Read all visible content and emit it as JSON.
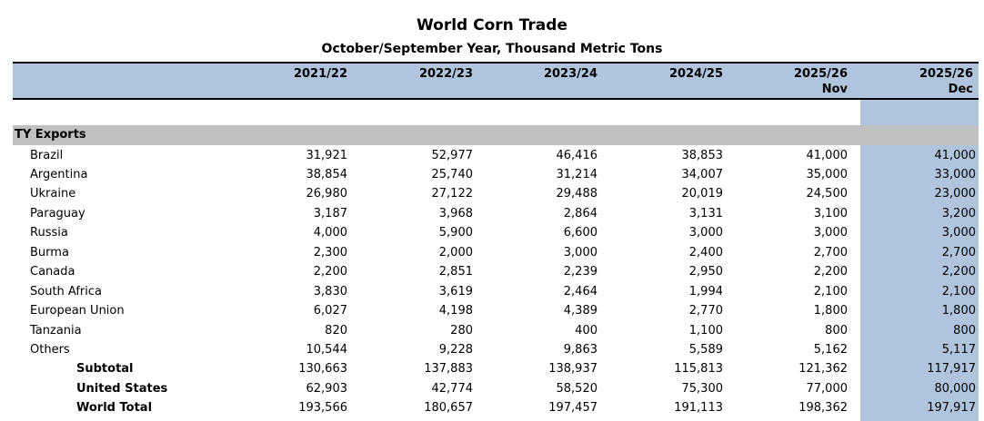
{
  "title": "World Corn Trade",
  "subtitle": "October/September Year, Thousand Metric Tons",
  "columns": [
    {
      "year": "2021/22",
      "month": ""
    },
    {
      "year": "2022/23",
      "month": ""
    },
    {
      "year": "2023/24",
      "month": ""
    },
    {
      "year": "2024/25",
      "month": ""
    },
    {
      "year": "2025/26",
      "month": "Nov"
    },
    {
      "year": "2025/26",
      "month": "Dec"
    }
  ],
  "section_label": "TY Exports",
  "rows": [
    {
      "label": "Brazil",
      "bold": false,
      "values": [
        "31,921",
        "52,977",
        "46,416",
        "38,853",
        "41,000",
        "41,000"
      ]
    },
    {
      "label": "Argentina",
      "bold": false,
      "values": [
        "38,854",
        "25,740",
        "31,214",
        "34,007",
        "35,000",
        "33,000"
      ]
    },
    {
      "label": "Ukraine",
      "bold": false,
      "values": [
        "26,980",
        "27,122",
        "29,488",
        "20,019",
        "24,500",
        "23,000"
      ]
    },
    {
      "label": "Paraguay",
      "bold": false,
      "values": [
        "3,187",
        "3,968",
        "2,864",
        "3,131",
        "3,100",
        "3,200"
      ]
    },
    {
      "label": "Russia",
      "bold": false,
      "values": [
        "4,000",
        "5,900",
        "6,600",
        "3,000",
        "3,000",
        "3,000"
      ]
    },
    {
      "label": "Burma",
      "bold": false,
      "values": [
        "2,300",
        "2,000",
        "3,000",
        "2,400",
        "2,700",
        "2,700"
      ]
    },
    {
      "label": "Canada",
      "bold": false,
      "values": [
        "2,200",
        "2,851",
        "2,239",
        "2,950",
        "2,200",
        "2,200"
      ]
    },
    {
      "label": "South Africa",
      "bold": false,
      "values": [
        "3,830",
        "3,619",
        "2,464",
        "1,994",
        "2,100",
        "2,100"
      ]
    },
    {
      "label": "European Union",
      "bold": false,
      "values": [
        "6,027",
        "4,198",
        "4,389",
        "2,770",
        "1,800",
        "1,800"
      ]
    },
    {
      "label": "Tanzania",
      "bold": false,
      "values": [
        "820",
        "280",
        "400",
        "1,100",
        "800",
        "800"
      ]
    },
    {
      "label": "Others",
      "bold": false,
      "values": [
        "10,544",
        "9,228",
        "9,863",
        "5,589",
        "5,162",
        "5,117"
      ]
    },
    {
      "label": "Subtotal",
      "bold": true,
      "values": [
        "130,663",
        "137,883",
        "138,937",
        "115,813",
        "121,362",
        "117,917"
      ]
    },
    {
      "label": "United States",
      "bold": true,
      "values": [
        "62,903",
        "42,774",
        "58,520",
        "75,300",
        "77,000",
        "80,000"
      ]
    },
    {
      "label": "World Total",
      "bold": true,
      "values": [
        "193,566",
        "180,657",
        "197,457",
        "191,113",
        "198,362",
        "197,917"
      ]
    }
  ],
  "colors": {
    "header_band": "#b0c4de",
    "section_band": "#c0c0c0",
    "highlight_column": "#b0c4de"
  }
}
